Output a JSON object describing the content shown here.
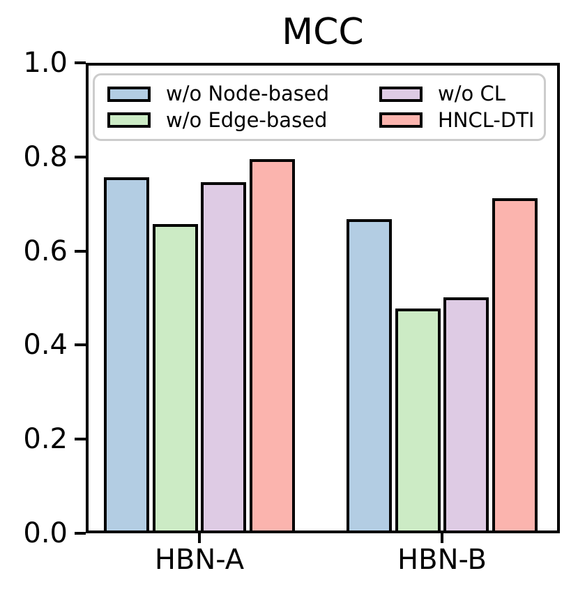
{
  "title": "MCC",
  "chart_data": {
    "type": "bar",
    "title": "MCC",
    "categories": [
      "HBN-A",
      "HBN-B"
    ],
    "series": [
      {
        "name": "w/o Node-based",
        "color": "#b3cde3",
        "values": [
          0.757,
          0.668
        ]
      },
      {
        "name": "w/o Edge-based",
        "color": "#ccebc5",
        "values": [
          0.658,
          0.478
        ]
      },
      {
        "name": "w/o CL",
        "color": "#decbe4",
        "values": [
          0.747,
          0.501
        ]
      },
      {
        "name": "HNCL-DTI",
        "color": "#fbb4ae",
        "values": [
          0.795,
          0.712
        ]
      }
    ],
    "xlabel": "",
    "ylabel": "",
    "ylim": [
      0.0,
      1.0
    ],
    "yticks": [
      "0.0",
      "0.2",
      "0.4",
      "0.6",
      "0.8",
      "1.0"
    ],
    "grid": false,
    "legend_position": "upper left",
    "bar_edge_color": "#000000",
    "legend_border_color": "#cccccc"
  }
}
